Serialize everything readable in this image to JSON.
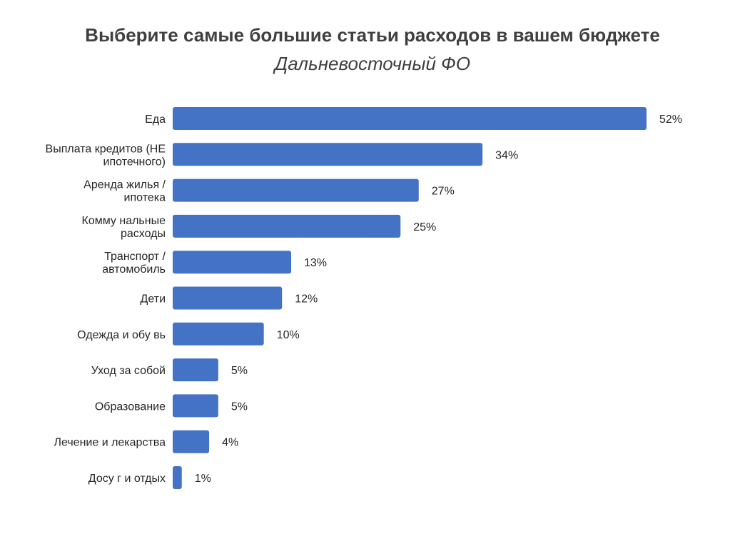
{
  "chart_data": {
    "type": "bar",
    "orientation": "horizontal",
    "title": "Выберите самые большие статьи расходов в вашем бюджете",
    "subtitle": "Дальневосточный ФО",
    "categories": [
      [
        "Еда"
      ],
      [
        "Выплата кредитов  (НЕ",
        "ипотечного)"
      ],
      [
        "Аренда жилья /",
        "ипотека"
      ],
      [
        "Комму нальные",
        "расходы"
      ],
      [
        "Транспорт /",
        "автомобиль"
      ],
      [
        "Дети"
      ],
      [
        "Одежда и обу вь"
      ],
      [
        "Уход за собой"
      ],
      [
        "Образование"
      ],
      [
        "Лечение и лекарства"
      ],
      [
        "Досу г и отдых"
      ]
    ],
    "values": [
      52,
      34,
      27,
      25,
      13,
      12,
      10,
      5,
      5,
      4,
      1
    ],
    "value_labels": [
      "52%",
      "34%",
      "27%",
      "25%",
      "13%",
      "12%",
      "10%",
      "5%",
      "5%",
      "4%",
      "1%"
    ],
    "xlim": [
      0,
      52
    ],
    "grid": false,
    "legend": "none",
    "bar_color": "#4472C4"
  }
}
